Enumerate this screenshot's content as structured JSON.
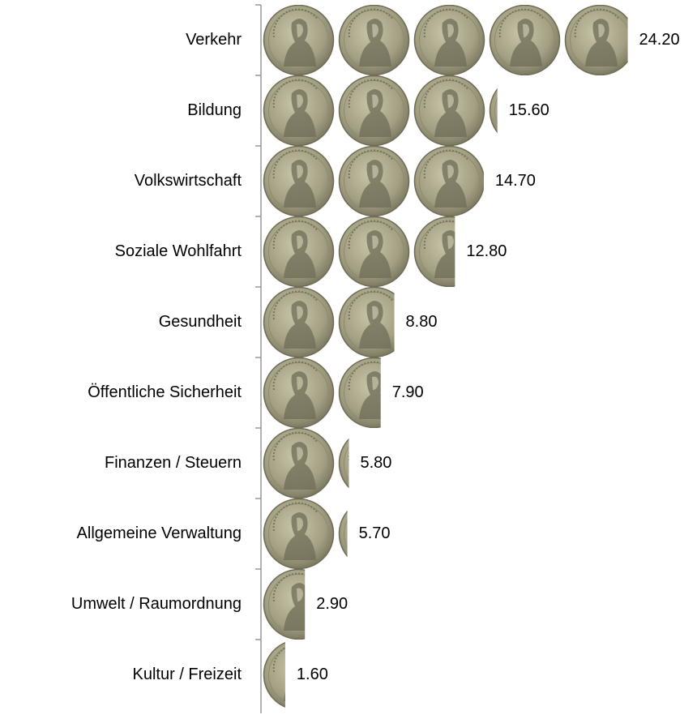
{
  "chart_data": {
    "type": "pictograph_bar",
    "categories": [
      "Verkehr",
      "Bildung",
      "Volkswirtschaft",
      "Soziale Wohlfahrt",
      "Gesundheit",
      "Öffentliche Sicherheit",
      "Finanzen / Steuern",
      "Allgemeine Verwaltung",
      "Umwelt / Raumordnung",
      "Kultur / Freizeit"
    ],
    "values": [
      24.2,
      15.6,
      14.7,
      12.8,
      8.8,
      7.9,
      5.8,
      5.7,
      2.9,
      1.6
    ],
    "value_labels": [
      "24.20",
      "15.60",
      "14.70",
      "12.80",
      "8.80",
      "7.90",
      "5.80",
      "5.70",
      "2.90",
      "1.60"
    ]
  }
}
